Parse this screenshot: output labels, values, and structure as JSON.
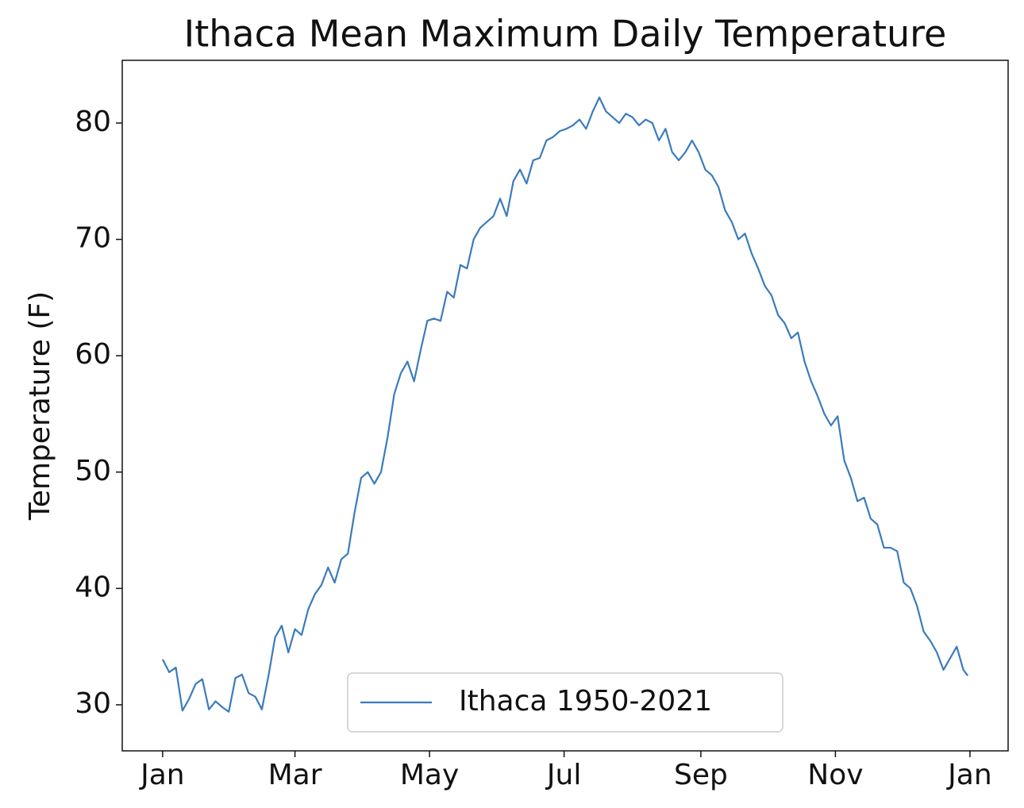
{
  "chart_data": {
    "type": "line",
    "title": "Ithaca Mean Maximum Daily Temperature",
    "y_label": "Temperature (F)",
    "x": [
      0,
      3,
      6,
      9,
      12,
      15,
      18,
      21,
      24,
      27,
      30,
      33,
      36,
      39,
      42,
      45,
      48,
      51,
      54,
      57,
      60,
      63,
      66,
      69,
      72,
      75,
      78,
      81,
      84,
      87,
      90,
      93,
      96,
      99,
      102,
      105,
      108,
      111,
      114,
      117,
      120,
      123,
      126,
      129,
      132,
      135,
      138,
      141,
      144,
      147,
      150,
      153,
      156,
      159,
      162,
      165,
      168,
      171,
      174,
      177,
      180,
      183,
      186,
      189,
      192,
      195,
      198,
      201,
      204,
      207,
      210,
      213,
      216,
      219,
      222,
      225,
      228,
      231,
      234,
      237,
      240,
      243,
      246,
      249,
      252,
      255,
      258,
      261,
      264,
      267,
      270,
      273,
      276,
      279,
      282,
      285,
      288,
      291,
      294,
      297,
      300,
      303,
      306,
      309,
      312,
      315,
      318,
      321,
      324,
      327,
      330,
      333,
      336,
      339,
      342,
      345,
      348,
      351,
      354,
      357,
      360,
      363,
      365
    ],
    "series": [
      {
        "name": "Ithaca 1950-2021",
        "color": "#3b7bbd",
        "values": [
          33.9,
          32.8,
          33.2,
          29.5,
          30.5,
          31.8,
          32.2,
          29.6,
          30.3,
          29.8,
          29.4,
          32.3,
          32.6,
          31.0,
          30.7,
          29.6,
          32.5,
          35.8,
          36.8,
          34.5,
          36.5,
          36.0,
          38.2,
          39.5,
          40.3,
          41.8,
          40.5,
          42.5,
          43.0,
          46.5,
          49.5,
          50.0,
          49.0,
          50.0,
          53.0,
          56.7,
          58.5,
          59.5,
          57.8,
          60.5,
          63.0,
          63.2,
          63.0,
          65.5,
          65.0,
          67.8,
          67.5,
          70.0,
          71.0,
          71.5,
          72.0,
          73.5,
          72.0,
          75.0,
          76.0,
          74.8,
          76.8,
          77.0,
          78.5,
          78.8,
          79.3,
          79.5,
          79.8,
          80.3,
          79.5,
          81.0,
          82.2,
          81.0,
          80.5,
          80.0,
          80.8,
          80.5,
          79.8,
          80.3,
          80.0,
          78.5,
          79.5,
          77.5,
          76.8,
          77.5,
          78.5,
          77.5,
          76.0,
          75.5,
          74.5,
          72.5,
          71.5,
          70.0,
          70.5,
          68.8,
          67.5,
          66.0,
          65.2,
          63.5,
          62.8,
          61.5,
          62.0,
          59.5,
          57.8,
          56.5,
          55.0,
          54.0,
          54.8,
          51.0,
          49.5,
          47.5,
          47.8,
          46.0,
          45.5,
          43.5,
          43.5,
          43.2,
          40.5,
          40.0,
          38.5,
          36.3,
          35.5,
          34.5,
          33.0,
          34.0,
          35.0,
          33.0,
          32.5
        ]
      }
    ],
    "xlim": [
      -18.3,
      383.3
    ],
    "xticks": [
      {
        "value": 0,
        "label": "Jan"
      },
      {
        "value": 60,
        "label": "Mar"
      },
      {
        "value": 121,
        "label": "May"
      },
      {
        "value": 182,
        "label": "Jul"
      },
      {
        "value": 244,
        "label": "Sep"
      },
      {
        "value": 305,
        "label": "Nov"
      },
      {
        "value": 366,
        "label": "Jan"
      }
    ],
    "ylim": [
      26.04,
      85.39
    ],
    "yticks": [
      30,
      40,
      50,
      60,
      70,
      80
    ],
    "grid": false,
    "legend_loc": "lower center"
  }
}
